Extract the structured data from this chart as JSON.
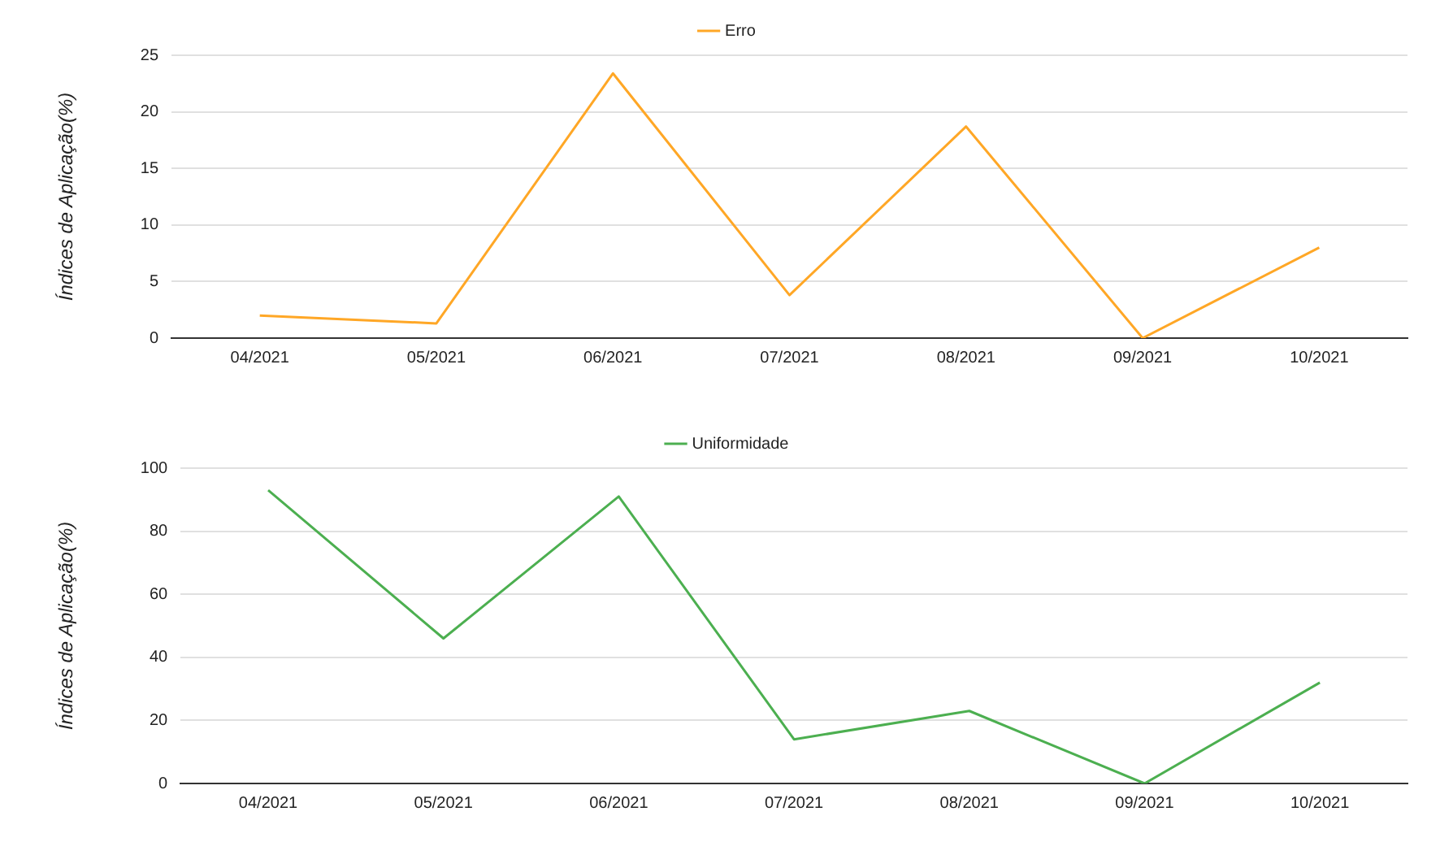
{
  "chart_data": [
    {
      "type": "line",
      "ylabel": "Índices de Aplicação(%)",
      "categories": [
        "04/2021",
        "05/2021",
        "06/2021",
        "07/2021",
        "08/2021",
        "09/2021",
        "10/2021"
      ],
      "series": [
        {
          "name": "Erro",
          "color": "#ffa726",
          "values": [
            2.0,
            1.3,
            23.4,
            3.8,
            18.7,
            0,
            8.0
          ]
        }
      ],
      "ylim": [
        0,
        25
      ],
      "yticks": [
        0,
        5,
        10,
        15,
        20,
        25
      ],
      "grid": "y",
      "legend": "top",
      "marker": "none",
      "line_style": "solid"
    },
    {
      "type": "line",
      "ylabel": "Índices de Aplicação(%)",
      "categories": [
        "04/2021",
        "05/2021",
        "06/2021",
        "07/2021",
        "08/2021",
        "09/2021",
        "10/2021"
      ],
      "series": [
        {
          "name": "Uniformidade",
          "color": "#4caf50",
          "values": [
            93,
            46,
            91,
            14,
            23,
            0,
            32
          ]
        }
      ],
      "ylim": [
        0,
        100
      ],
      "yticks": [
        0,
        20,
        40,
        60,
        80,
        100
      ],
      "grid": "y",
      "legend": "top",
      "marker": "none",
      "line_style": "solid"
    }
  ]
}
